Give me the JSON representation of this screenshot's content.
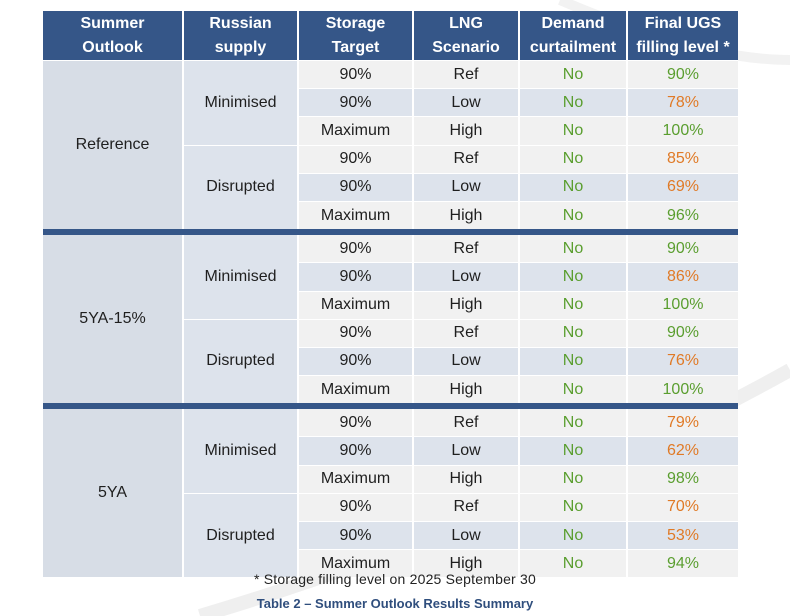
{
  "headers": [
    [
      "Summer",
      "Outlook"
    ],
    [
      "Russian",
      "supply"
    ],
    [
      "Storage",
      "Target"
    ],
    [
      "LNG",
      "Scenario"
    ],
    [
      "Demand",
      "curtailment"
    ],
    [
      "Final UGS",
      "filling level *"
    ]
  ],
  "groups": [
    {
      "outlook": "Reference",
      "supplies": [
        {
          "label": "Minimised",
          "rows": [
            {
              "target": "90%",
              "lng": "Ref",
              "curtailment": "No",
              "filling": "90%",
              "filling_color": "#5a9e2f"
            },
            {
              "target": "90%",
              "lng": "Low",
              "curtailment": "No",
              "filling": "78%",
              "filling_color": "#e07a26"
            },
            {
              "target": "Maximum",
              "lng": "High",
              "curtailment": "No",
              "filling": "100%",
              "filling_color": "#5a9e2f"
            }
          ]
        },
        {
          "label": "Disrupted",
          "rows": [
            {
              "target": "90%",
              "lng": "Ref",
              "curtailment": "No",
              "filling": "85%",
              "filling_color": "#e07a26"
            },
            {
              "target": "90%",
              "lng": "Low",
              "curtailment": "No",
              "filling": "69%",
              "filling_color": "#e07a26"
            },
            {
              "target": "Maximum",
              "lng": "High",
              "curtailment": "No",
              "filling": "96%",
              "filling_color": "#5a9e2f"
            }
          ]
        }
      ]
    },
    {
      "outlook": "5YA-15%",
      "supplies": [
        {
          "label": "Minimised",
          "rows": [
            {
              "target": "90%",
              "lng": "Ref",
              "curtailment": "No",
              "filling": "90%",
              "filling_color": "#5a9e2f"
            },
            {
              "target": "90%",
              "lng": "Low",
              "curtailment": "No",
              "filling": "86%",
              "filling_color": "#e07a26"
            },
            {
              "target": "Maximum",
              "lng": "High",
              "curtailment": "No",
              "filling": "100%",
              "filling_color": "#5a9e2f"
            }
          ]
        },
        {
          "label": "Disrupted",
          "rows": [
            {
              "target": "90%",
              "lng": "Ref",
              "curtailment": "No",
              "filling": "90%",
              "filling_color": "#5a9e2f"
            },
            {
              "target": "90%",
              "lng": "Low",
              "curtailment": "No",
              "filling": "76%",
              "filling_color": "#e07a26"
            },
            {
              "target": "Maximum",
              "lng": "High",
              "curtailment": "No",
              "filling": "100%",
              "filling_color": "#5a9e2f"
            }
          ]
        }
      ]
    },
    {
      "outlook": "5YA",
      "supplies": [
        {
          "label": "Minimised",
          "rows": [
            {
              "target": "90%",
              "lng": "Ref",
              "curtailment": "No",
              "filling": "79%",
              "filling_color": "#e07a26"
            },
            {
              "target": "90%",
              "lng": "Low",
              "curtailment": "No",
              "filling": "62%",
              "filling_color": "#e07a26"
            },
            {
              "target": "Maximum",
              "lng": "High",
              "curtailment": "No",
              "filling": "98%",
              "filling_color": "#5a9e2f"
            }
          ]
        },
        {
          "label": "Disrupted",
          "rows": [
            {
              "target": "90%",
              "lng": "Ref",
              "curtailment": "No",
              "filling": "70%",
              "filling_color": "#e07a26"
            },
            {
              "target": "90%",
              "lng": "Low",
              "curtailment": "No",
              "filling": "53%",
              "filling_color": "#e07a26"
            },
            {
              "target": "Maximum",
              "lng": "High",
              "curtailment": "No",
              "filling": "94%",
              "filling_color": "#5a9e2f"
            }
          ]
        }
      ]
    }
  ],
  "footnote": "* Storage filling level on 2025 September 30",
  "caption": "Table 2 – Summer Outlook Results Summary",
  "colors": {
    "header_bg": "#355688",
    "curtailment": "#5a9e2f",
    "green": "#5a9e2f",
    "orange": "#e07a26"
  }
}
